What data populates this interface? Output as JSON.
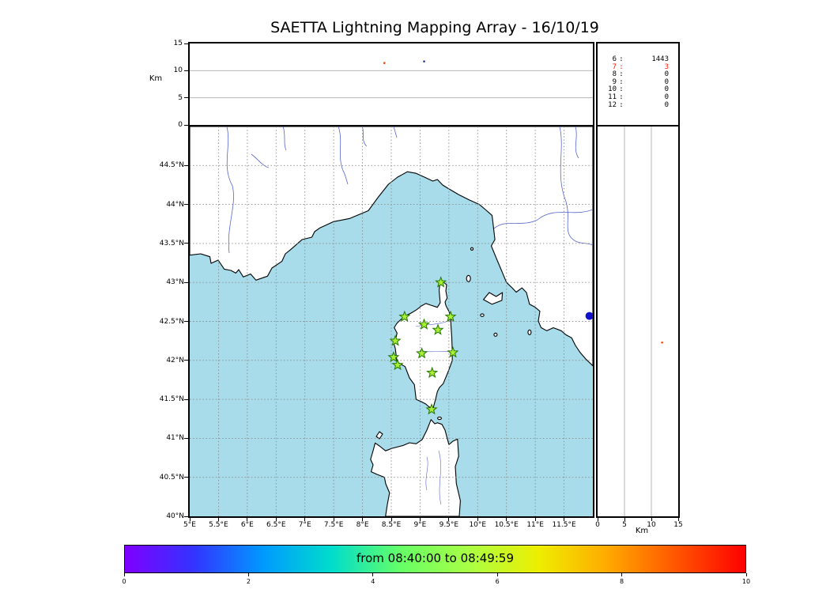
{
  "chart_data": {
    "type": "scatter",
    "title": "SAETTA Lightning Mapping Array - 16/10/19",
    "alt_lon_panel": {
      "ylabel": "Km",
      "ylim": [
        0,
        15
      ],
      "yticks": [
        {
          "v": 15,
          "label": "15"
        },
        {
          "v": 10,
          "label": "10"
        },
        {
          "v": 5,
          "label": "5"
        },
        {
          "v": 0,
          "label": "0"
        }
      ],
      "xlim": [
        5,
        12
      ],
      "points": [
        {
          "lon": 8.38,
          "km": 11.4,
          "color": "#ff4400",
          "r": 1.3
        },
        {
          "lon": 9.07,
          "km": 11.7,
          "color": "#223399",
          "r": 1.3
        }
      ]
    },
    "map_panel": {
      "xlim": [
        5,
        12
      ],
      "ylim": [
        40,
        45
      ],
      "sea_color": "#a8dcea",
      "land_color": "#ffffff",
      "coast_color": "#000000",
      "river_color": "#5566cc",
      "station_color": "#aaee33",
      "station_edge_color": "#227700",
      "grid": "dashed",
      "lon_ticks": [
        {
          "v": 5,
          "label": "5°E"
        },
        {
          "v": 5.5,
          "label": "5.5°E"
        },
        {
          "v": 6,
          "label": "6°E"
        },
        {
          "v": 6.5,
          "label": "6.5°E"
        },
        {
          "v": 7,
          "label": "7°E"
        },
        {
          "v": 7.5,
          "label": "7.5°E"
        },
        {
          "v": 8,
          "label": "8°E"
        },
        {
          "v": 8.5,
          "label": "8.5°E"
        },
        {
          "v": 9,
          "label": "9°E"
        },
        {
          "v": 9.5,
          "label": "9.5°E"
        },
        {
          "v": 10,
          "label": "10°E"
        },
        {
          "v": 10.5,
          "label": "10.5°E"
        },
        {
          "v": 11,
          "label": "11°E"
        },
        {
          "v": 11.5,
          "label": "11.5°E"
        }
      ],
      "lat_ticks": [
        {
          "v": 44.5,
          "label": "44.5°N"
        },
        {
          "v": 44,
          "label": "44°N"
        },
        {
          "v": 43.5,
          "label": "43.5°N"
        },
        {
          "v": 43,
          "label": "43°N"
        },
        {
          "v": 42.5,
          "label": "42.5°N"
        },
        {
          "v": 42,
          "label": "42°N"
        },
        {
          "v": 41.5,
          "label": "41.5°N"
        },
        {
          "v": 41,
          "label": "41°N"
        },
        {
          "v": 40.5,
          "label": "40.5°N"
        },
        {
          "v": 40,
          "label": "40°N"
        }
      ],
      "stations": [
        {
          "lon": 9.36,
          "lat": 43.0
        },
        {
          "lon": 8.73,
          "lat": 42.56
        },
        {
          "lon": 9.07,
          "lat": 42.46
        },
        {
          "lon": 9.53,
          "lat": 42.56
        },
        {
          "lon": 9.31,
          "lat": 42.39
        },
        {
          "lon": 8.57,
          "lat": 42.25
        },
        {
          "lon": 9.03,
          "lat": 42.09
        },
        {
          "lon": 9.57,
          "lat": 42.1
        },
        {
          "lon": 8.54,
          "lat": 42.04
        },
        {
          "lon": 8.61,
          "lat": 41.94
        },
        {
          "lon": 9.21,
          "lat": 41.84
        },
        {
          "lon": 9.2,
          "lat": 41.37
        }
      ],
      "points": [
        {
          "lon": 11.94,
          "lat": 42.57,
          "color": "#1111cc",
          "r": 5
        }
      ]
    },
    "alt_lat_panel": {
      "xlabel": "Km",
      "xlim": [
        0,
        15
      ],
      "xticks": [
        {
          "v": 0,
          "label": "0"
        },
        {
          "v": 5,
          "label": "5"
        },
        {
          "v": 10,
          "label": "10"
        },
        {
          "v": 15,
          "label": "15"
        }
      ],
      "ylim": [
        40,
        45
      ],
      "points": [
        {
          "km": 12.0,
          "lat": 42.23,
          "color": "#ff4400",
          "r": 1.3
        }
      ]
    },
    "station_counts": [
      {
        "level": "6",
        "count": "1443",
        "highlight": false
      },
      {
        "level": "7",
        "count": "3",
        "highlight": true
      },
      {
        "level": "8",
        "count": "0",
        "highlight": false
      },
      {
        "level": "9",
        "count": "0",
        "highlight": false
      },
      {
        "level": "10",
        "count": "0",
        "highlight": false
      },
      {
        "level": "11",
        "count": "0",
        "highlight": false
      },
      {
        "level": "12",
        "count": "0",
        "highlight": false
      }
    ],
    "colorbar": {
      "label": "from 08:40:00 to 08:49:59",
      "range": [
        0,
        10
      ],
      "ticks": [
        {
          "v": 0,
          "label": "0"
        },
        {
          "v": 2,
          "label": "2"
        },
        {
          "v": 4,
          "label": "4"
        },
        {
          "v": 6,
          "label": "6"
        },
        {
          "v": 8,
          "label": "8"
        },
        {
          "v": 10,
          "label": "10"
        }
      ],
      "colors": [
        "#7f00ff",
        "#3333ff",
        "#0099ff",
        "#00ddcc",
        "#66ff66",
        "#aaff44",
        "#eeee00",
        "#ffaa00",
        "#ff5500",
        "#ff0000"
      ]
    }
  }
}
